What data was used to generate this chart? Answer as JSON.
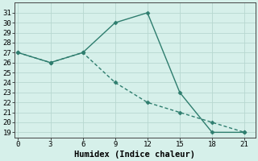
{
  "xlabel": "Humidex (Indice chaleur)",
  "x": [
    0,
    3,
    6,
    9,
    12,
    15,
    18,
    21
  ],
  "line1_y": [
    27,
    26,
    27,
    30,
    31,
    23,
    19,
    19
  ],
  "line2_y": [
    27,
    26,
    27,
    24,
    22,
    21,
    20,
    19
  ],
  "line_color": "#2e7d6e",
  "marker": "D",
  "marker_size": 2.5,
  "xlim": [
    -0.3,
    22
  ],
  "ylim": [
    18.5,
    32
  ],
  "yticks": [
    19,
    20,
    21,
    22,
    23,
    24,
    25,
    26,
    27,
    28,
    29,
    30,
    31
  ],
  "xticks": [
    0,
    3,
    6,
    9,
    12,
    15,
    18,
    21
  ],
  "bg_color": "#d6f0ea",
  "grid_color": "#b8d8d0",
  "tick_fontsize": 6.5,
  "label_fontsize": 7.5,
  "linewidth": 1.0
}
